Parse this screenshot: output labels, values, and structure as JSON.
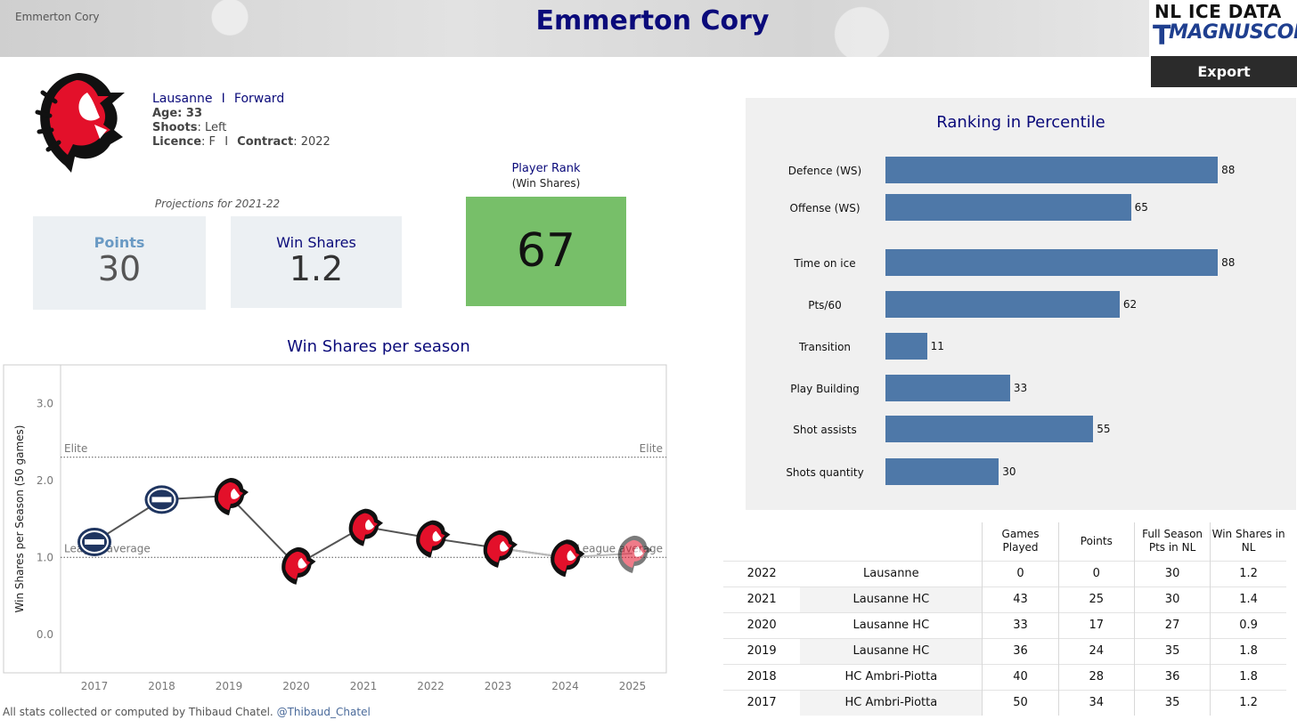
{
  "header": {
    "small_label": "Emmerton Cory",
    "title": "Emmerton Cory",
    "brand_top": "NL ICE DATA",
    "brand_bottom": "MAGNUSCORSI",
    "brand_t": "T",
    "export_label": "Export"
  },
  "player": {
    "team": "Lausanne",
    "sep": "I",
    "position": "Forward",
    "age_label": "Age: 33",
    "shoots_label": "Shoots",
    "shoots_value": ": Left",
    "licence_label": "Licence",
    "licence_value": ": F",
    "contract_label": "Contract",
    "contract_value": ": 2022"
  },
  "projections": {
    "label": "Projections for 2021-22",
    "points_label": "Points",
    "points_value": "30",
    "ws_label": "Win Shares",
    "ws_value": "1.2"
  },
  "rank": {
    "title": "Player Rank",
    "subtitle": "(Win Shares)",
    "value": "67"
  },
  "colors": {
    "navy": "#0a0a7a",
    "bar": "#4e78a8",
    "rank_green": "#77bf69",
    "lausanne_red": "#e3102a",
    "ambri_navy": "#1f3560"
  },
  "chart_data": [
    {
      "type": "line",
      "title": "Win Shares per season",
      "ylabel": "Win Shares per Season (50 games)",
      "xlabel": "",
      "x": [
        "2017",
        "2018",
        "2019",
        "2020",
        "2021",
        "2022",
        "2023",
        "2024",
        "2025"
      ],
      "series": [
        {
          "name": "Win Shares",
          "values": [
            1.2,
            1.75,
            1.8,
            0.9,
            1.4,
            1.25,
            1.12,
            1.0,
            1.05
          ],
          "teams": [
            "HC Ambri-Piotta",
            "HC Ambri-Piotta",
            "Lausanne HC",
            "Lausanne HC",
            "Lausanne HC",
            "Lausanne",
            "Lausanne",
            "Lausanne",
            "Lausanne"
          ]
        }
      ],
      "yticks": [
        "0.0",
        "1.0",
        "2.0",
        "3.0"
      ],
      "ylim": [
        -0.5,
        3.5
      ],
      "reference_lines": [
        {
          "label": "Elite",
          "value": 2.3
        },
        {
          "label": "League average",
          "value": 1.0
        }
      ]
    },
    {
      "type": "bar",
      "orientation": "horizontal",
      "title": "Ranking in Percentile",
      "categories": [
        "Defence (WS)",
        "Offense (WS)",
        "Time on ice",
        "Pts/60",
        "Transition",
        "Play Building",
        "Shot assists",
        "Shots quantity"
      ],
      "values": [
        88,
        65,
        88,
        62,
        11,
        33,
        55,
        30
      ],
      "xlim": [
        0,
        100
      ]
    }
  ],
  "table": {
    "headers": [
      "",
      "",
      "Games Played",
      "Points",
      "Full Season Pts in NL",
      "Win Shares in NL"
    ],
    "rows": [
      [
        "2022",
        "Lausanne",
        "0",
        "0",
        "30",
        "1.2"
      ],
      [
        "2021",
        "Lausanne HC",
        "43",
        "25",
        "30",
        "1.4"
      ],
      [
        "2020",
        "Lausanne HC",
        "33",
        "17",
        "27",
        "0.9"
      ],
      [
        "2019",
        "Lausanne HC",
        "36",
        "24",
        "35",
        "1.8"
      ],
      [
        "2018",
        "HC Ambri-Piotta",
        "40",
        "28",
        "36",
        "1.8"
      ],
      [
        "2017",
        "HC Ambri-Piotta",
        "50",
        "34",
        "35",
        "1.2"
      ]
    ]
  },
  "footer": {
    "note": "All stats collected or computed by Thibaud Chatel.",
    "handle": "@Thibaud_Chatel"
  }
}
